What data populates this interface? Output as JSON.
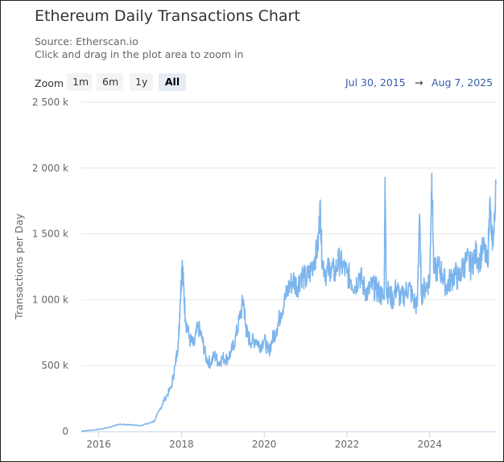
{
  "title": "Ethereum Daily Transactions Chart",
  "source": "Source: Etherscan.io",
  "hint": "Click and drag in the plot area to zoom in",
  "zoom": {
    "label": "Zoom",
    "buttons": [
      "1m",
      "6m",
      "1y",
      "All"
    ],
    "active": "All"
  },
  "range": {
    "from": "Jul 30, 2015",
    "arrow": "→",
    "to": "Aug 7, 2025"
  },
  "colors": {
    "series": "#7cb5ec",
    "grid": "#e6e6e6",
    "axis": "#666666"
  },
  "chart_data": {
    "type": "line",
    "title": "Ethereum Daily Transactions Chart",
    "ylabel": "Transactions per Day",
    "xlabel": "",
    "xlim": [
      2015.58,
      2025.6
    ],
    "ylim": [
      0,
      2500000
    ],
    "xticks": [
      2016,
      2018,
      2020,
      2022,
      2024
    ],
    "xtick_labels": [
      "2016",
      "2018",
      "2020",
      "2022",
      "2024"
    ],
    "yticks": [
      0,
      500000,
      1000000,
      1500000,
      2000000,
      2500000
    ],
    "ytick_labels": [
      "0",
      "500 k",
      "1 000 k",
      "1 500 k",
      "2 000 k",
      "2 500 k"
    ],
    "grid": true,
    "legend": false,
    "series": [
      {
        "name": "Transactions per Day",
        "x": [
          2015.58,
          2015.75,
          2016.0,
          2016.25,
          2016.5,
          2016.75,
          2017.0,
          2017.2,
          2017.35,
          2017.5,
          2017.6,
          2017.75,
          2017.85,
          2017.93,
          2017.97,
          2018.02,
          2018.05,
          2018.1,
          2018.2,
          2018.3,
          2018.4,
          2018.5,
          2018.6,
          2018.7,
          2018.8,
          2018.9,
          2019.0,
          2019.1,
          2019.2,
          2019.3,
          2019.4,
          2019.5,
          2019.55,
          2019.6,
          2019.7,
          2019.8,
          2019.9,
          2020.0,
          2020.1,
          2020.2,
          2020.3,
          2020.4,
          2020.5,
          2020.6,
          2020.7,
          2020.8,
          2020.9,
          2021.0,
          2021.1,
          2021.2,
          2021.3,
          2021.35,
          2021.4,
          2021.5,
          2021.6,
          2021.7,
          2021.8,
          2021.9,
          2022.0,
          2022.1,
          2022.2,
          2022.3,
          2022.4,
          2022.5,
          2022.6,
          2022.7,
          2022.8,
          2022.9,
          2022.92,
          2022.95,
          2023.0,
          2023.1,
          2023.2,
          2023.3,
          2023.4,
          2023.5,
          2023.6,
          2023.7,
          2023.75,
          2023.8,
          2023.9,
          2024.0,
          2024.05,
          2024.1,
          2024.2,
          2024.3,
          2024.4,
          2024.5,
          2024.6,
          2024.7,
          2024.8,
          2024.9,
          2025.0,
          2025.1,
          2025.2,
          2025.3,
          2025.4,
          2025.45,
          2025.5,
          2025.55,
          2025.6
        ],
        "values": [
          2000,
          8000,
          15000,
          30000,
          55000,
          50000,
          45000,
          60000,
          80000,
          180000,
          250000,
          330000,
          500000,
          700000,
          1000000,
          1300000,
          1100000,
          850000,
          700000,
          650000,
          800000,
          700000,
          550000,
          520000,
          580000,
          520000,
          560000,
          550000,
          600000,
          700000,
          850000,
          1000000,
          800000,
          720000,
          680000,
          700000,
          650000,
          700000,
          600000,
          700000,
          780000,
          900000,
          1000000,
          1100000,
          1150000,
          1100000,
          1200000,
          1150000,
          1200000,
          1300000,
          1400000,
          1720000,
          1300000,
          1200000,
          1250000,
          1200000,
          1300000,
          1250000,
          1200000,
          1150000,
          1100000,
          1200000,
          1100000,
          1050000,
          1100000,
          1080000,
          1050000,
          1000000,
          1930000,
          1100000,
          1050000,
          1000000,
          1100000,
          1000000,
          1050000,
          1100000,
          1000000,
          950000,
          1650000,
          1050000,
          1100000,
          1150000,
          1960000,
          1200000,
          1250000,
          1200000,
          1100000,
          1150000,
          1200000,
          1150000,
          1250000,
          1300000,
          1250000,
          1350000,
          1300000,
          1400000,
          1250000,
          1750000,
          1450000,
          1500000,
          1880000
        ]
      }
    ]
  }
}
